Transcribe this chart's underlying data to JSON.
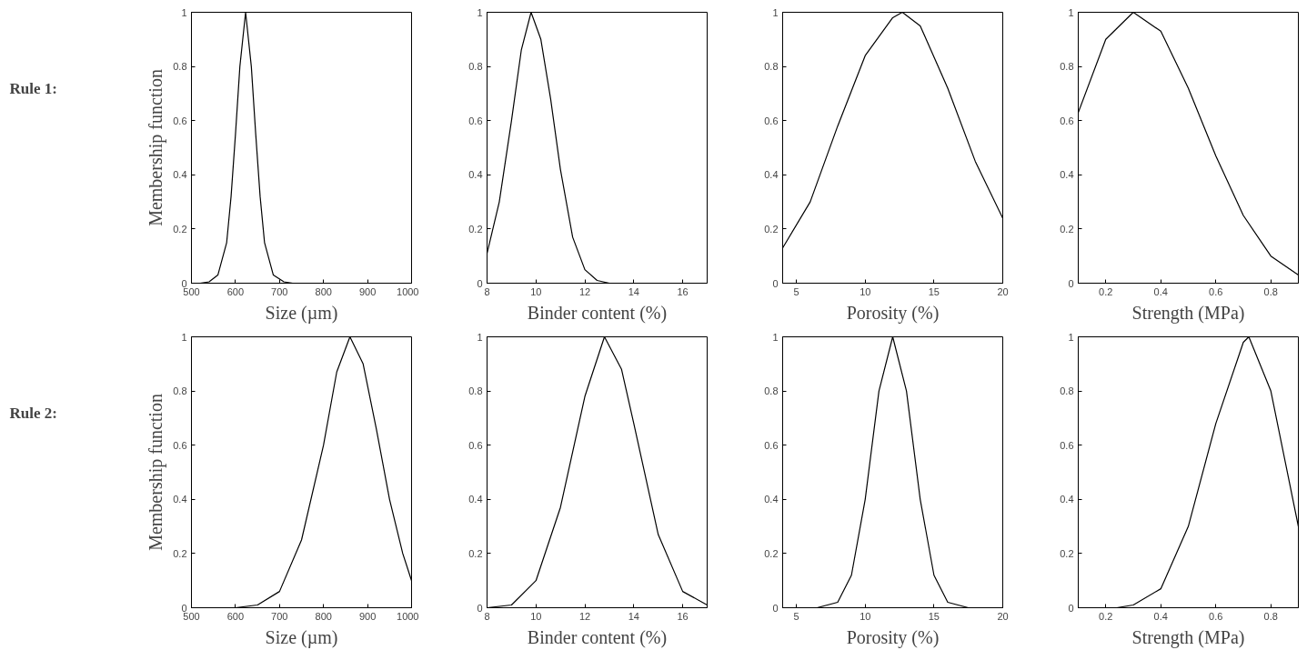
{
  "chart_data": [
    {
      "type": "line",
      "annotations": [
        "Rule 1:"
      ],
      "xlabel": "Size (µm)",
      "ylabel": "Membership function",
      "color": "#000000",
      "x": [
        520,
        540,
        560,
        580,
        590,
        600,
        610,
        623,
        636,
        646,
        656,
        666,
        686,
        710,
        730
      ],
      "values": [
        0,
        0.005,
        0.03,
        0.15,
        0.32,
        0.55,
        0.8,
        1,
        0.8,
        0.55,
        0.32,
        0.15,
        0.03,
        0.005,
        0
      ],
      "xlim": [
        500,
        1000
      ],
      "ylim": [
        0,
        1
      ],
      "xticks": [
        500,
        600,
        700,
        800,
        900,
        1000
      ],
      "yticks": [
        0,
        0.2,
        0.4,
        0.6,
        0.8,
        1
      ]
    },
    {
      "type": "line",
      "xlabel": "Binder content (%)",
      "color": "#000000",
      "x": [
        8,
        8.5,
        9,
        9.4,
        9.8,
        10.2,
        10.6,
        11,
        11.5,
        12,
        12.5,
        13
      ],
      "values": [
        0.11,
        0.3,
        0.6,
        0.86,
        1,
        0.9,
        0.68,
        0.42,
        0.17,
        0.05,
        0.01,
        0
      ],
      "xlim": [
        8,
        17
      ],
      "ylim": [
        0,
        1
      ],
      "xticks": [
        8,
        10,
        12,
        14,
        16
      ],
      "yticks": [
        0,
        0.2,
        0.4,
        0.6,
        0.8,
        1
      ]
    },
    {
      "type": "line",
      "xlabel": "Porosity (%)",
      "color": "#000000",
      "x": [
        4,
        6,
        8,
        10,
        12,
        12.7,
        14,
        16,
        18,
        20
      ],
      "values": [
        0.13,
        0.3,
        0.58,
        0.84,
        0.98,
        1,
        0.95,
        0.72,
        0.45,
        0.24
      ],
      "xlim": [
        4,
        20
      ],
      "ylim": [
        0,
        1
      ],
      "xticks": [
        5,
        10,
        15,
        20
      ],
      "yticks": [
        0,
        0.2,
        0.4,
        0.6,
        0.8,
        1
      ]
    },
    {
      "type": "line",
      "xlabel": "Strength (MPa)",
      "color": "#000000",
      "x": [
        0.1,
        0.2,
        0.3,
        0.4,
        0.5,
        0.6,
        0.7,
        0.8,
        0.9
      ],
      "values": [
        0.63,
        0.9,
        1,
        0.93,
        0.72,
        0.47,
        0.25,
        0.1,
        0.03
      ],
      "xlim": [
        0.1,
        0.9
      ],
      "ylim": [
        0,
        1
      ],
      "xticks": [
        0.2,
        0.4,
        0.6,
        0.8
      ],
      "yticks": [
        0,
        0.2,
        0.4,
        0.6,
        0.8,
        1
      ]
    },
    {
      "type": "line",
      "annotations": [
        "Rule 2:"
      ],
      "xlabel": "Size (µm)",
      "ylabel": "Membership function",
      "color": "#000000",
      "x": [
        600,
        650,
        700,
        750,
        800,
        830,
        860,
        890,
        920,
        950,
        980,
        1000
      ],
      "values": [
        0,
        0.01,
        0.06,
        0.25,
        0.6,
        0.87,
        1,
        0.9,
        0.66,
        0.4,
        0.2,
        0.1
      ],
      "xlim": [
        500,
        1000
      ],
      "ylim": [
        0,
        1
      ],
      "xticks": [
        500,
        600,
        700,
        800,
        900,
        1000
      ],
      "yticks": [
        0,
        0.2,
        0.4,
        0.6,
        0.8,
        1
      ]
    },
    {
      "type": "line",
      "xlabel": "Binder content (%)",
      "color": "#000000",
      "x": [
        8,
        9,
        10,
        11,
        12,
        12.8,
        13.5,
        14,
        15,
        16,
        17
      ],
      "values": [
        0,
        0.01,
        0.1,
        0.37,
        0.78,
        1,
        0.88,
        0.68,
        0.27,
        0.06,
        0.01
      ],
      "xlim": [
        8,
        17
      ],
      "ylim": [
        0,
        1
      ],
      "xticks": [
        8,
        10,
        12,
        14,
        16
      ],
      "yticks": [
        0,
        0.2,
        0.4,
        0.6,
        0.8,
        1
      ]
    },
    {
      "type": "line",
      "xlabel": "Porosity (%)",
      "color": "#000000",
      "x": [
        6.5,
        8,
        9,
        10,
        11,
        12,
        13,
        14,
        15,
        16,
        17.5
      ],
      "values": [
        0,
        0.02,
        0.12,
        0.4,
        0.8,
        1,
        0.8,
        0.4,
        0.12,
        0.02,
        0
      ],
      "xlim": [
        4,
        20
      ],
      "ylim": [
        0,
        1
      ],
      "xticks": [
        5,
        10,
        15,
        20
      ],
      "yticks": [
        0,
        0.2,
        0.4,
        0.6,
        0.8,
        1
      ]
    },
    {
      "type": "line",
      "xlabel": "Strength (MPa)",
      "color": "#000000",
      "x": [
        0.24,
        0.3,
        0.4,
        0.5,
        0.6,
        0.7,
        0.72,
        0.8,
        0.9
      ],
      "values": [
        0,
        0.01,
        0.07,
        0.3,
        0.68,
        0.98,
        1,
        0.8,
        0.3
      ],
      "xlim": [
        0.1,
        0.9
      ],
      "ylim": [
        0,
        1
      ],
      "xticks": [
        0.2,
        0.4,
        0.6,
        0.8
      ],
      "yticks": [
        0,
        0.2,
        0.4,
        0.6,
        0.8,
        1
      ]
    }
  ]
}
